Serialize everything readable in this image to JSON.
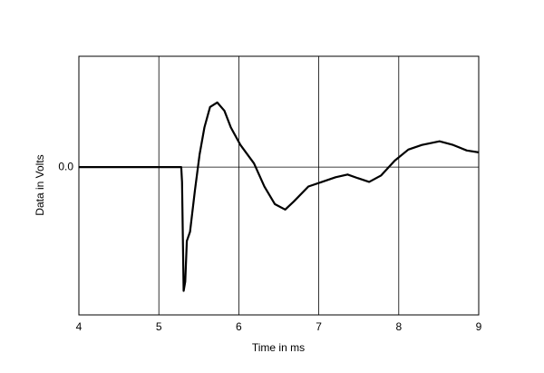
{
  "chart_data": {
    "type": "line",
    "x_label": "Time in ms",
    "y_label": "Data in Volts",
    "xlim": [
      4,
      9
    ],
    "xticks": [
      4,
      5,
      6,
      7,
      8,
      9
    ],
    "ylim": [
      -1.6,
      1.2
    ],
    "yticks": [
      {
        "value": 0,
        "label": "0.0"
      }
    ],
    "grid": true,
    "series": [
      {
        "color": "#000000",
        "x": [
          4.0,
          5.28,
          5.29,
          5.31,
          5.33,
          5.35,
          5.39,
          5.45,
          5.51,
          5.57,
          5.64,
          5.73,
          5.82,
          5.9,
          6.02,
          6.19,
          6.32,
          6.45,
          6.58,
          6.69,
          6.87,
          7.04,
          7.21,
          7.36,
          7.49,
          7.63,
          7.78,
          7.95,
          8.12,
          8.29,
          8.51,
          8.68,
          8.85,
          9.0
        ],
        "values": [
          0,
          0,
          -0.16,
          -1.34,
          -1.24,
          -0.8,
          -0.7,
          -0.26,
          0.14,
          0.43,
          0.65,
          0.7,
          0.61,
          0.43,
          0.24,
          0.04,
          -0.21,
          -0.4,
          -0.46,
          -0.37,
          -0.21,
          -0.16,
          -0.11,
          -0.08,
          -0.12,
          -0.16,
          -0.09,
          0.07,
          0.19,
          0.24,
          0.28,
          0.24,
          0.18,
          0.16
        ]
      }
    ]
  }
}
